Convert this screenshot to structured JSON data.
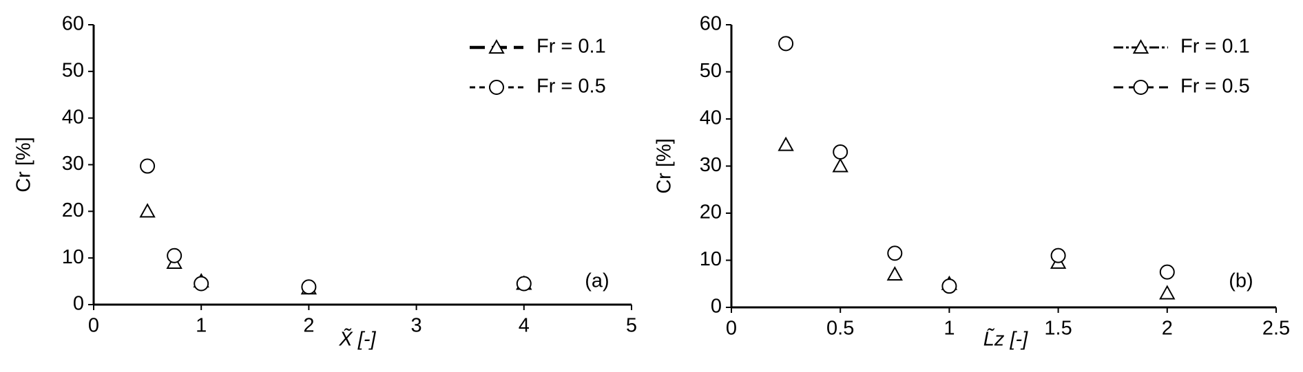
{
  "chart_data": [
    {
      "type": "line",
      "x_label": "X̃ [-]",
      "y_label": "Cr [%]",
      "annotation": "(a)",
      "x": [
        0.5,
        0.75,
        1,
        2,
        4
      ],
      "series": [
        {
          "name": "Fr = 0.1",
          "color": "#000000",
          "marker": "triangle",
          "values": [
            20,
            9,
            5,
            3.5,
            4.5
          ]
        },
        {
          "name": "Fr = 0.5",
          "color": "#000000",
          "marker": "circle",
          "values": [
            29.7,
            10.5,
            4.5,
            3.8,
            4.5
          ]
        }
      ],
      "xlim": [
        0,
        5
      ],
      "xticks": [
        0,
        1,
        2,
        3,
        4,
        5
      ],
      "ylim": [
        0,
        60
      ],
      "yticks": [
        0,
        10,
        20,
        30,
        40,
        50,
        60
      ]
    },
    {
      "type": "line",
      "x_label": "L̃z [-]",
      "y_label": "Cr [%]",
      "annotation": "(b)",
      "x": [
        0.25,
        0.5,
        0.75,
        1,
        1.5,
        2
      ],
      "series": [
        {
          "name": "Fr = 0.1",
          "color": "#000000",
          "marker": "triangle",
          "values": [
            34.5,
            30,
            7,
            5,
            9.5,
            3
          ]
        },
        {
          "name": "Fr = 0.5",
          "color": "#000000",
          "marker": "circle",
          "values": [
            56,
            33,
            11.5,
            4.5,
            11,
            7.5
          ]
        }
      ],
      "xlim": [
        0,
        2.5
      ],
      "xticks": [
        0,
        0.5,
        1,
        1.5,
        2,
        2.5
      ],
      "ylim": [
        0,
        60
      ],
      "yticks": [
        0,
        10,
        20,
        30,
        40,
        50,
        60
      ]
    }
  ]
}
